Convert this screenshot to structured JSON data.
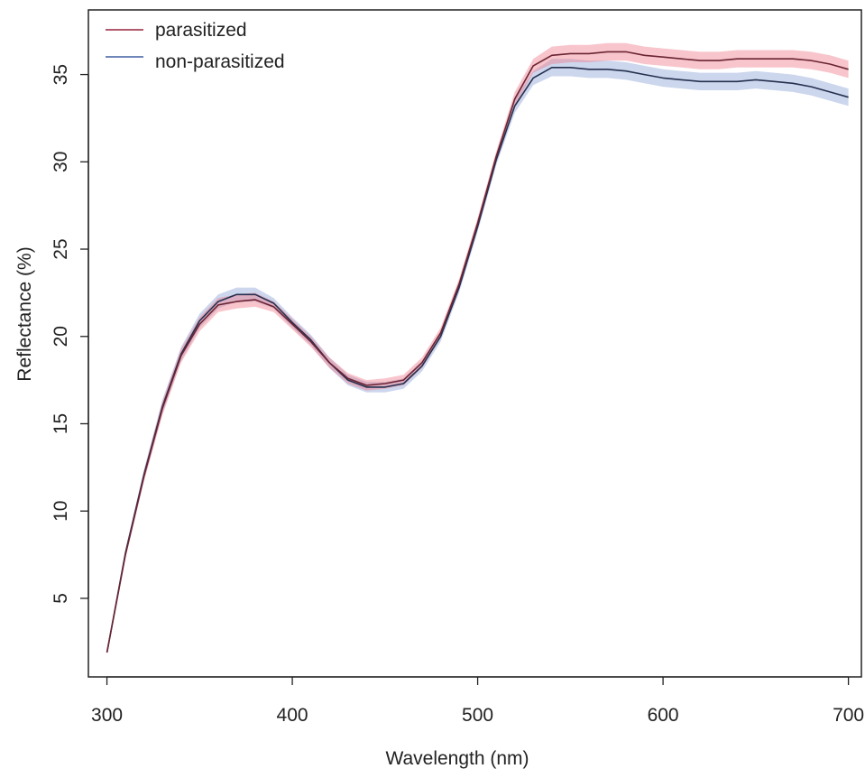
{
  "chart_data": {
    "type": "line",
    "title": "",
    "xlabel": "Wavelength (nm)",
    "ylabel": "Reflectance (%)",
    "xlim": [
      290,
      707
    ],
    "ylim": [
      0.5,
      38.7
    ],
    "xticks": [
      300,
      400,
      500,
      600,
      700
    ],
    "xtick_labels": [
      "300",
      "400",
      "500",
      "600",
      "700"
    ],
    "yticks": [
      5,
      10,
      15,
      20,
      25,
      30,
      35
    ],
    "ytick_labels": [
      "5",
      "10",
      "15",
      "20",
      "25",
      "30",
      "35"
    ],
    "grid": false,
    "legend_position": "top-left",
    "x": [
      300,
      310,
      320,
      330,
      340,
      350,
      360,
      370,
      380,
      390,
      400,
      410,
      420,
      430,
      440,
      450,
      460,
      470,
      480,
      490,
      500,
      510,
      520,
      530,
      540,
      550,
      560,
      570,
      580,
      590,
      600,
      610,
      620,
      630,
      640,
      650,
      660,
      670,
      680,
      690,
      700
    ],
    "series": [
      {
        "name": "parasitized",
        "line_color": "#6b2433",
        "band_color": "#f07f8e",
        "values": [
          1.9,
          7.5,
          12.0,
          15.9,
          18.9,
          20.7,
          21.8,
          22.0,
          22.1,
          21.7,
          20.7,
          19.7,
          18.5,
          17.6,
          17.2,
          17.3,
          17.5,
          18.5,
          20.2,
          23.0,
          26.5,
          30.3,
          33.6,
          35.5,
          36.1,
          36.2,
          36.2,
          36.3,
          36.3,
          36.1,
          36.0,
          35.9,
          35.8,
          35.8,
          35.9,
          35.9,
          35.9,
          35.9,
          35.8,
          35.6,
          35.3
        ],
        "band": [
          0.1,
          0.2,
          0.3,
          0.4,
          0.4,
          0.4,
          0.4,
          0.4,
          0.4,
          0.3,
          0.3,
          0.3,
          0.3,
          0.3,
          0.3,
          0.3,
          0.3,
          0.3,
          0.3,
          0.3,
          0.3,
          0.3,
          0.4,
          0.4,
          0.5,
          0.5,
          0.5,
          0.5,
          0.5,
          0.5,
          0.5,
          0.5,
          0.5,
          0.5,
          0.5,
          0.5,
          0.5,
          0.5,
          0.5,
          0.5,
          0.5
        ]
      },
      {
        "name": "non-parasitized",
        "line_color": "#25304f",
        "band_color": "#8ea4d6",
        "values": [
          1.9,
          7.6,
          12.1,
          16.0,
          19.0,
          20.9,
          22.0,
          22.4,
          22.4,
          21.9,
          20.8,
          19.8,
          18.5,
          17.5,
          17.1,
          17.1,
          17.3,
          18.3,
          20.0,
          22.8,
          26.3,
          30.1,
          33.2,
          34.8,
          35.4,
          35.4,
          35.3,
          35.3,
          35.2,
          35.0,
          34.8,
          34.7,
          34.6,
          34.6,
          34.6,
          34.7,
          34.6,
          34.5,
          34.3,
          34.0,
          33.7
        ]
      }
    ]
  }
}
